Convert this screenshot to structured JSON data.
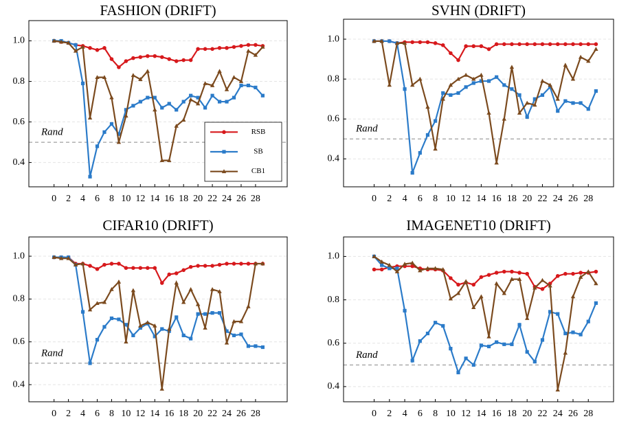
{
  "chart_data": [
    {
      "type": "line",
      "title": "FASHION (DRIFT)",
      "legend": "lower right",
      "x": [
        0,
        1,
        2,
        3,
        4,
        5,
        6,
        7,
        8,
        9,
        10,
        11,
        12,
        13,
        14,
        15,
        16,
        17,
        18,
        19,
        20,
        21,
        22,
        23,
        24,
        25,
        26,
        27,
        28,
        29
      ],
      "xlim": [
        -3.5,
        32.4
      ],
      "ylim": [
        0.28,
        1.1
      ],
      "xticks": [
        0,
        2,
        4,
        6,
        8,
        10,
        12,
        14,
        16,
        18,
        20,
        22,
        24,
        26,
        28
      ],
      "yticks": [
        0.4,
        0.6,
        0.8,
        {
          "value": 1,
          "label": "1.0"
        }
      ],
      "grid": true,
      "hline": 0.5,
      "hline_label": "Rand",
      "series": [
        {
          "name": "RSB",
          "color": "#d7191c",
          "marker": "circle",
          "values": [
            1.0,
            0.995,
            0.99,
            0.98,
            0.975,
            0.965,
            0.955,
            0.965,
            0.91,
            0.87,
            0.9,
            0.915,
            0.92,
            0.925,
            0.925,
            0.92,
            0.91,
            0.9,
            0.905,
            0.905,
            0.96,
            0.96,
            0.96,
            0.965,
            0.965,
            0.97,
            0.975,
            0.98,
            0.98,
            0.975
          ]
        },
        {
          "name": "SB",
          "color": "#2b7bc9",
          "marker": "square",
          "values": [
            1.0,
            1.0,
            0.99,
            0.98,
            0.79,
            0.33,
            0.48,
            0.55,
            0.59,
            0.54,
            0.66,
            0.68,
            0.7,
            0.72,
            0.72,
            0.67,
            0.69,
            0.66,
            0.7,
            0.73,
            0.72,
            0.67,
            0.73,
            0.7,
            0.7,
            0.72,
            0.78,
            0.78,
            0.77,
            0.73
          ]
        },
        {
          "name": "CB1",
          "color": "#7b4a1e",
          "marker": "triangle",
          "values": [
            1.0,
            0.995,
            0.99,
            0.95,
            0.97,
            0.62,
            0.82,
            0.82,
            0.72,
            0.5,
            0.63,
            0.83,
            0.81,
            0.85,
            0.66,
            0.41,
            0.41,
            0.58,
            0.61,
            0.71,
            0.69,
            0.79,
            0.78,
            0.85,
            0.76,
            0.82,
            0.8,
            0.95,
            0.93,
            0.97
          ]
        }
      ]
    },
    {
      "type": "line",
      "title": "SVHN (DRIFT)",
      "x": [
        0,
        1,
        2,
        3,
        4,
        5,
        6,
        7,
        8,
        9,
        10,
        11,
        12,
        13,
        14,
        15,
        16,
        17,
        18,
        19,
        20,
        21,
        22,
        23,
        24,
        25,
        26,
        27,
        28,
        29
      ],
      "xlim": [
        -4,
        31.3
      ],
      "ylim": [
        0.26,
        1.1
      ],
      "xticks": [
        0,
        2,
        4,
        6,
        8,
        10,
        12,
        14,
        16,
        18,
        20,
        22,
        24,
        26,
        28
      ],
      "yticks": [
        0.4,
        0.6,
        0.8,
        {
          "value": 1,
          "label": "1.0"
        }
      ],
      "grid": true,
      "hline": 0.5,
      "hline_label": "Rand",
      "series": [
        {
          "name": "RSB",
          "color": "#d7191c",
          "marker": "circle",
          "values": [
            0.99,
            0.99,
            0.99,
            0.98,
            0.985,
            0.985,
            0.985,
            0.985,
            0.98,
            0.97,
            0.93,
            0.895,
            0.965,
            0.965,
            0.965,
            0.95,
            0.975,
            0.975,
            0.975,
            0.975,
            0.975,
            0.975,
            0.975,
            0.975,
            0.975,
            0.975,
            0.975,
            0.975,
            0.975,
            0.975
          ]
        },
        {
          "name": "SB",
          "color": "#2b7bc9",
          "marker": "square",
          "values": [
            0.99,
            0.99,
            0.99,
            0.98,
            0.75,
            0.33,
            0.43,
            0.52,
            0.59,
            0.73,
            0.72,
            0.73,
            0.76,
            0.78,
            0.79,
            0.79,
            0.81,
            0.77,
            0.75,
            0.72,
            0.61,
            0.7,
            0.72,
            0.76,
            0.64,
            0.69,
            0.68,
            0.68,
            0.65,
            0.74
          ]
        },
        {
          "name": "CB1",
          "color": "#7b4a1e",
          "marker": "triangle",
          "values": [
            0.99,
            0.99,
            0.77,
            0.98,
            0.98,
            0.77,
            0.8,
            0.66,
            0.45,
            0.7,
            0.77,
            0.8,
            0.82,
            0.8,
            0.82,
            0.63,
            0.38,
            0.6,
            0.86,
            0.63,
            0.68,
            0.67,
            0.79,
            0.77,
            0.7,
            0.87,
            0.8,
            0.91,
            0.89,
            0.95
          ]
        }
      ]
    },
    {
      "type": "line",
      "title": "CIFAR10 (DRIFT)",
      "x": [
        0,
        1,
        2,
        3,
        4,
        5,
        6,
        7,
        8,
        9,
        10,
        11,
        12,
        13,
        14,
        15,
        16,
        17,
        18,
        19,
        20,
        21,
        22,
        23,
        24,
        25,
        26,
        27,
        28,
        29
      ],
      "xlim": [
        -3.5,
        32.4
      ],
      "ylim": [
        0.32,
        1.09
      ],
      "xticks": [
        0,
        2,
        4,
        6,
        8,
        10,
        12,
        14,
        16,
        18,
        20,
        22,
        24,
        26,
        28
      ],
      "yticks": [
        0.4,
        0.6,
        0.8,
        {
          "value": 1,
          "label": "1.0"
        }
      ],
      "grid": true,
      "hline": 0.5,
      "hline_label": "Rand",
      "series": [
        {
          "name": "RSB",
          "color": "#d7191c",
          "marker": "circle",
          "values": [
            0.995,
            0.995,
            0.995,
            0.965,
            0.965,
            0.955,
            0.94,
            0.96,
            0.965,
            0.965,
            0.945,
            0.945,
            0.945,
            0.945,
            0.945,
            0.875,
            0.915,
            0.92,
            0.935,
            0.95,
            0.955,
            0.955,
            0.955,
            0.96,
            0.965,
            0.965,
            0.965,
            0.965,
            0.965,
            0.965
          ]
        },
        {
          "name": "SB",
          "color": "#2b7bc9",
          "marker": "square",
          "values": [
            0.995,
            0.995,
            0.995,
            0.96,
            0.74,
            0.5,
            0.61,
            0.67,
            0.71,
            0.705,
            0.68,
            0.63,
            0.665,
            0.685,
            0.625,
            0.66,
            0.65,
            0.715,
            0.63,
            0.615,
            0.73,
            0.73,
            0.735,
            0.735,
            0.65,
            0.63,
            0.635,
            0.58,
            0.58,
            0.575
          ]
        },
        {
          "name": "CB1",
          "color": "#7b4a1e",
          "marker": "triangle",
          "values": [
            0.995,
            0.99,
            0.99,
            0.96,
            0.965,
            0.75,
            0.78,
            0.785,
            0.845,
            0.88,
            0.6,
            0.84,
            0.675,
            0.69,
            0.675,
            0.38,
            0.66,
            0.875,
            0.785,
            0.845,
            0.775,
            0.665,
            0.845,
            0.835,
            0.595,
            0.695,
            0.695,
            0.765,
            0.965,
            0.965
          ]
        }
      ]
    },
    {
      "type": "line",
      "title": "IMAGENET10 (DRIFT)",
      "x": [
        0,
        1,
        2,
        3,
        4,
        5,
        6,
        7,
        8,
        9,
        10,
        11,
        12,
        13,
        14,
        15,
        16,
        17,
        18,
        19,
        20,
        21,
        22,
        23,
        24,
        25,
        26,
        27,
        28,
        29
      ],
      "xlim": [
        -4,
        31.3
      ],
      "ylim": [
        0.33,
        1.09
      ],
      "xticks": [
        0,
        2,
        4,
        6,
        8,
        10,
        12,
        14,
        16,
        18,
        20,
        22,
        24,
        26,
        28
      ],
      "yticks": [
        0.4,
        0.6,
        0.8,
        {
          "value": 1,
          "label": "1.0"
        }
      ],
      "grid": true,
      "hline": 0.5,
      "hline_label": "Rand",
      "series": [
        {
          "name": "RSB",
          "color": "#d7191c",
          "marker": "circle",
          "values": [
            0.94,
            0.94,
            0.95,
            0.955,
            0.955,
            0.955,
            0.945,
            0.94,
            0.94,
            0.935,
            0.9,
            0.87,
            0.88,
            0.87,
            0.905,
            0.915,
            0.925,
            0.93,
            0.93,
            0.925,
            0.92,
            0.86,
            0.85,
            0.875,
            0.91,
            0.92,
            0.92,
            0.925,
            0.925,
            0.93
          ]
        },
        {
          "name": "SB",
          "color": "#2b7bc9",
          "marker": "square",
          "values": [
            1.0,
            0.96,
            0.945,
            0.945,
            0.75,
            0.52,
            0.61,
            0.645,
            0.695,
            0.68,
            0.575,
            0.465,
            0.53,
            0.5,
            0.59,
            0.585,
            0.605,
            0.595,
            0.595,
            0.685,
            0.56,
            0.515,
            0.615,
            0.745,
            0.735,
            0.645,
            0.65,
            0.64,
            0.7,
            0.785
          ]
        },
        {
          "name": "CB1",
          "color": "#7b4a1e",
          "marker": "triangle",
          "values": [
            1.0,
            0.975,
            0.96,
            0.93,
            0.965,
            0.97,
            0.935,
            0.945,
            0.945,
            0.94,
            0.805,
            0.83,
            0.885,
            0.765,
            0.815,
            0.63,
            0.875,
            0.83,
            0.895,
            0.895,
            0.715,
            0.855,
            0.89,
            0.865,
            0.385,
            0.555,
            0.815,
            0.905,
            0.93,
            0.875
          ]
        }
      ]
    }
  ]
}
